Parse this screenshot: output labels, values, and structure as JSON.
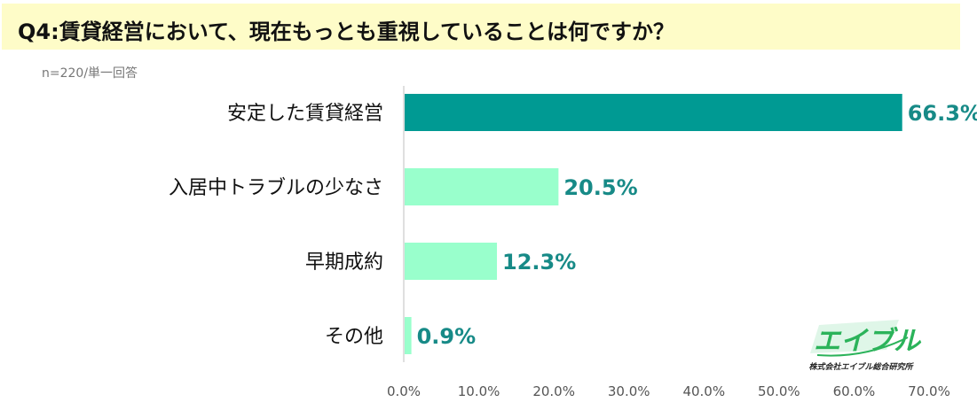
{
  "title": "Q4:賃貸経営において、現在もっとも重視していることは何ですか？",
  "note": "n=220/単一回答",
  "colors": {
    "title_bg": "#fefcc8",
    "bar_highlight": "#009a93",
    "bar_normal": "#99ffcc",
    "value_label": "#178a87"
  },
  "logo": {
    "name": "エイブル",
    "company": "株式会社エイブル総合研究所"
  },
  "chart_data": {
    "type": "bar",
    "orientation": "horizontal",
    "categories": [
      "安定した賃貸経営",
      "入居中トラブルの少なさ",
      "早期成約",
      "その他"
    ],
    "values": [
      66.3,
      20.5,
      12.3,
      0.9
    ],
    "value_labels": [
      "66.3%",
      "20.5%",
      "12.3%",
      "0.9%"
    ],
    "xlim": [
      0,
      70
    ],
    "x_ticks": [
      "0.0%",
      "10.0%",
      "20.0%",
      "30.0%",
      "40.0%",
      "50.0%",
      "60.0%",
      "70.0%"
    ],
    "grid": false
  }
}
